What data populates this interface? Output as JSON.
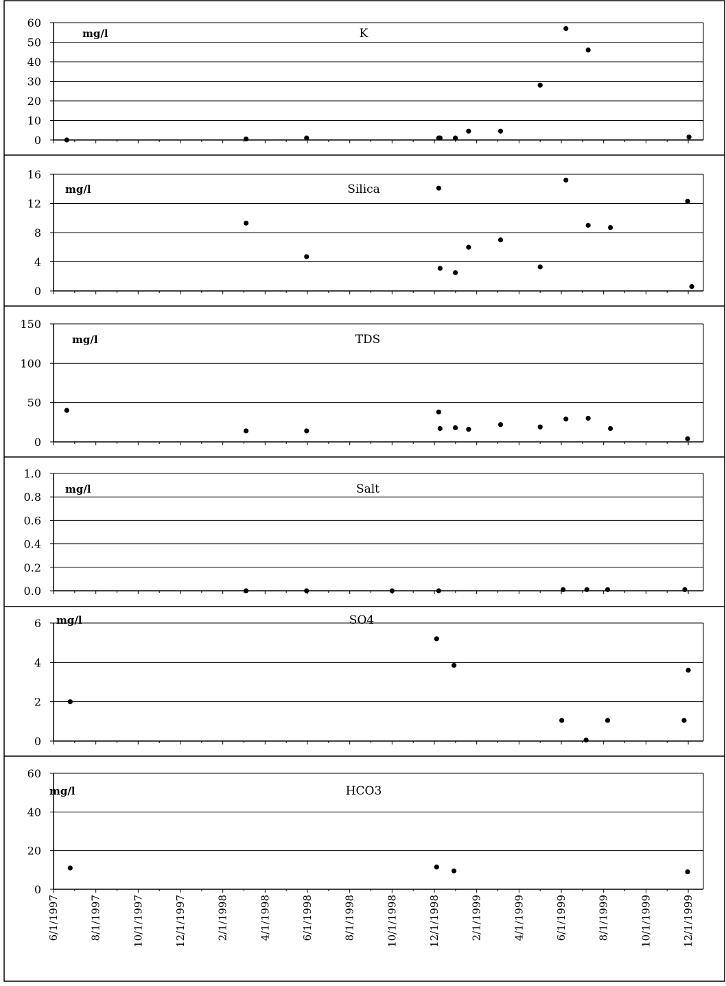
{
  "x_tick_labels": [
    "6/1/1997",
    "8/1/1997",
    "10/1/1997",
    "12/1/1997",
    "2/1/1998",
    "4/1/1998",
    "6/1/1998",
    "8/1/1998",
    "10/1/1998",
    "12/1/1998",
    "2/1/1999",
    "4/1/1999",
    "6/1/1999",
    "8/1/1999",
    "10/1/1999",
    "12/1/1999"
  ],
  "chart_data": [
    {
      "type": "scatter",
      "title": "K",
      "unit_label": "mg/l",
      "ylim": [
        0,
        60
      ],
      "yticks": [
        "0",
        "10",
        "20",
        "30",
        "40",
        "50",
        "60"
      ],
      "xlim": [
        "1997-06-01",
        "1999-12-31"
      ],
      "x_tick_labels": [
        "6/1/1997",
        "8/1/1997",
        "10/1/1997",
        "12/1/1997",
        "2/1/1998",
        "4/1/1998",
        "6/1/1998",
        "8/1/1998",
        "10/1/1998",
        "12/1/1998",
        "2/1/1999",
        "4/1/1999",
        "6/1/1999",
        "8/1/1999",
        "10/1/1999",
        "12/1/1999"
      ],
      "grid": true,
      "points": [
        {
          "x": "1997-06-20",
          "y": 0
        },
        {
          "x": "1998-03-05",
          "y": 0.5
        },
        {
          "x": "1998-05-31",
          "y": 1
        },
        {
          "x": "1998-12-07",
          "y": 1
        },
        {
          "x": "1998-12-09",
          "y": 1
        },
        {
          "x": "1998-12-31",
          "y": 1
        },
        {
          "x": "1999-01-19",
          "y": 4.5
        },
        {
          "x": "1999-03-06",
          "y": 4.5
        },
        {
          "x": "1999-05-02",
          "y": 28
        },
        {
          "x": "1999-06-08",
          "y": 57
        },
        {
          "x": "1999-07-10",
          "y": 46
        },
        {
          "x": "1999-12-02",
          "y": 1.5
        }
      ]
    },
    {
      "type": "scatter",
      "title": "Silica",
      "unit_label": "mg/l",
      "ylim": [
        0,
        16
      ],
      "yticks": [
        "0",
        "4",
        "8",
        "12",
        "16"
      ],
      "xlim": [
        "1997-06-01",
        "1999-12-31"
      ],
      "x_tick_labels": [
        "6/1/1997",
        "8/1/1997",
        "10/1/1997",
        "12/1/1997",
        "2/1/1998",
        "4/1/1998",
        "6/1/1998",
        "8/1/1998",
        "10/1/1998",
        "12/1/1998",
        "2/1/1999",
        "4/1/1999",
        "6/1/1999",
        "8/1/1999",
        "10/1/1999",
        "12/1/1999"
      ],
      "grid": true,
      "points": [
        {
          "x": "1998-03-05",
          "y": 9.3
        },
        {
          "x": "1998-05-31",
          "y": 4.7
        },
        {
          "x": "1998-12-07",
          "y": 14.1
        },
        {
          "x": "1998-12-09",
          "y": 3.1
        },
        {
          "x": "1998-12-31",
          "y": 2.5
        },
        {
          "x": "1999-01-19",
          "y": 6.0
        },
        {
          "x": "1999-03-06",
          "y": 7.0
        },
        {
          "x": "1999-05-02",
          "y": 3.3
        },
        {
          "x": "1999-06-08",
          "y": 15.2
        },
        {
          "x": "1999-07-10",
          "y": 9.0
        },
        {
          "x": "1999-08-11",
          "y": 8.7
        },
        {
          "x": "1999-11-30",
          "y": 12.3
        },
        {
          "x": "1999-12-06",
          "y": 0.6
        }
      ]
    },
    {
      "type": "scatter",
      "title": "TDS",
      "unit_label": "mg/l",
      "ylim": [
        0,
        150
      ],
      "yticks": [
        "0",
        "50",
        "100",
        "150"
      ],
      "xlim": [
        "1997-06-01",
        "1999-12-31"
      ],
      "x_tick_labels": [
        "6/1/1997",
        "8/1/1997",
        "10/1/1997",
        "12/1/1997",
        "2/1/1998",
        "4/1/1998",
        "6/1/1998",
        "8/1/1998",
        "10/1/1998",
        "12/1/1998",
        "2/1/1999",
        "4/1/1999",
        "6/1/1999",
        "8/1/1999",
        "10/1/1999",
        "12/1/1999"
      ],
      "grid": true,
      "points": [
        {
          "x": "1997-06-20",
          "y": 40
        },
        {
          "x": "1998-03-05",
          "y": 14
        },
        {
          "x": "1998-05-31",
          "y": 14
        },
        {
          "x": "1998-12-07",
          "y": 38
        },
        {
          "x": "1998-12-09",
          "y": 17
        },
        {
          "x": "1998-12-31",
          "y": 18
        },
        {
          "x": "1999-01-19",
          "y": 16
        },
        {
          "x": "1999-03-06",
          "y": 22
        },
        {
          "x": "1999-05-02",
          "y": 19
        },
        {
          "x": "1999-06-08",
          "y": 29
        },
        {
          "x": "1999-07-10",
          "y": 30
        },
        {
          "x": "1999-08-11",
          "y": 17
        },
        {
          "x": "1999-11-30",
          "y": 4
        }
      ]
    },
    {
      "type": "scatter",
      "title": "Salt",
      "unit_label": "mg/l",
      "ylim": [
        0,
        1.0
      ],
      "yticks": [
        "0.0",
        "0.2",
        "0.4",
        "0.6",
        "0.8",
        "1.0"
      ],
      "xlim": [
        "1997-06-01",
        "1999-12-31"
      ],
      "x_tick_labels": [
        "6/1/1997",
        "8/1/1997",
        "10/1/1997",
        "12/1/1997",
        "2/1/1998",
        "4/1/1998",
        "6/1/1998",
        "8/1/1998",
        "10/1/1998",
        "12/1/1998",
        "2/1/1999",
        "4/1/1999",
        "6/1/1999",
        "8/1/1999",
        "10/1/1999",
        "12/1/1999"
      ],
      "grid": true,
      "points": [
        {
          "x": "1998-03-05",
          "y": 0.0
        },
        {
          "x": "1998-05-31",
          "y": 0.0
        },
        {
          "x": "1998-10-01",
          "y": 0.0
        },
        {
          "x": "1998-12-07",
          "y": 0.0
        },
        {
          "x": "1999-06-04",
          "y": 0.01
        },
        {
          "x": "1999-07-08",
          "y": 0.01
        },
        {
          "x": "1999-08-07",
          "y": 0.01
        },
        {
          "x": "1999-11-26",
          "y": 0.01
        }
      ]
    },
    {
      "type": "scatter",
      "title": "SO4",
      "unit_label": "mg/l",
      "ylim": [
        0,
        6
      ],
      "yticks": [
        "0",
        "2",
        "4",
        "6"
      ],
      "xlim": [
        "1997-06-01",
        "1999-12-31"
      ],
      "x_tick_labels": [
        "6/1/1997",
        "8/1/1997",
        "10/1/1997",
        "12/1/1997",
        "2/1/1998",
        "4/1/1998",
        "6/1/1998",
        "8/1/1998",
        "10/1/1998",
        "12/1/1998",
        "2/1/1999",
        "4/1/1999",
        "6/1/1999",
        "8/1/1999",
        "10/1/1999",
        "12/1/1999"
      ],
      "grid": true,
      "points": [
        {
          "x": "1997-06-25",
          "y": 2.0
        },
        {
          "x": "1998-12-04",
          "y": 5.2
        },
        {
          "x": "1998-12-29",
          "y": 3.85
        },
        {
          "x": "1999-06-02",
          "y": 1.05
        },
        {
          "x": "1999-07-07",
          "y": 0.05
        },
        {
          "x": "1999-08-07",
          "y": 1.05
        },
        {
          "x": "1999-11-25",
          "y": 1.05
        },
        {
          "x": "1999-12-01",
          "y": 3.6
        }
      ]
    },
    {
      "type": "scatter",
      "title": "HCO3",
      "unit_label": "mg/l",
      "ylim": [
        0,
        60
      ],
      "yticks": [
        "0",
        "20",
        "40",
        "60"
      ],
      "xlim": [
        "1997-06-01",
        "1999-12-31"
      ],
      "x_tick_labels": [
        "6/1/1997",
        "8/1/1997",
        "10/1/1997",
        "12/1/1997",
        "2/1/1998",
        "4/1/1998",
        "6/1/1998",
        "8/1/1998",
        "10/1/1998",
        "12/1/1998",
        "2/1/1999",
        "4/1/1999",
        "6/1/1999",
        "8/1/1999",
        "10/1/1999",
        "12/1/1999"
      ],
      "grid": true,
      "points": [
        {
          "x": "1997-06-25",
          "y": 11
        },
        {
          "x": "1998-12-04",
          "y": 11.5
        },
        {
          "x": "1998-12-29",
          "y": 9.5
        },
        {
          "x": "1999-11-30",
          "y": 9
        }
      ]
    }
  ]
}
